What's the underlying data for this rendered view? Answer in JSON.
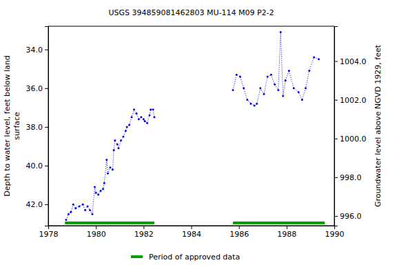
{
  "chart_data": {
    "type": "line",
    "title": "USGS 394859081462803 MU-114 M09 P2-2",
    "y_label": [
      "Depth to water level, feet below land",
      "surface"
    ],
    "y2_label": "Groundwater level above NGVD 1929, feet",
    "xlim": [
      1978,
      1990
    ],
    "xticks": [
      1978,
      1980,
      1982,
      1984,
      1986,
      1988,
      1990
    ],
    "ylim": [
      32.8,
      43.1
    ],
    "yticks": [
      {
        "value": 34,
        "label": "34.0"
      },
      {
        "value": 36,
        "label": "36.0"
      },
      {
        "value": 38,
        "label": "38.0"
      },
      {
        "value": 40,
        "label": "40.0"
      },
      {
        "value": 42,
        "label": "42.0"
      }
    ],
    "y2lim": [
      1005.8,
      995.5
    ],
    "y2ticks": [
      {
        "value": 996,
        "label": "996.0"
      },
      {
        "value": 998,
        "label": "998.0"
      },
      {
        "value": 1000,
        "label": "1000.0"
      },
      {
        "value": 1002,
        "label": "1002.0"
      },
      {
        "value": 1004,
        "label": "1004.0"
      }
    ],
    "grid": false,
    "series": [
      {
        "name": "Depth to water level",
        "color": "#0000ff",
        "marker": "point",
        "line_style": "dotted",
        "x": [
          1978.75,
          1978.85,
          1978.95,
          1979.05,
          1979.15,
          1979.3,
          1979.45,
          1979.55,
          1979.65,
          1979.75,
          1979.85,
          1979.95,
          1980.0,
          1980.1,
          1980.2,
          1980.3,
          1980.35,
          1980.45,
          1980.5,
          1980.6,
          1980.7,
          1980.75,
          1980.8,
          1980.9,
          1980.95,
          1981.05,
          1981.15,
          1981.25,
          1981.3,
          1981.4,
          1981.5,
          1981.6,
          1981.7,
          1981.8,
          1981.9,
          1982.0,
          1982.05,
          1982.15,
          1982.25,
          1982.3,
          1982.4,
          1982.45,
          1984.0,
          1985.75,
          1985.9,
          1986.05,
          1986.2,
          1986.35,
          1986.5,
          1986.65,
          1986.75,
          1986.9,
          1987.05,
          1987.2,
          1987.35,
          1987.5,
          1987.65,
          1987.75,
          1987.85,
          1987.95,
          1988.1,
          1988.3,
          1988.5,
          1988.65,
          1988.8,
          1988.95,
          1989.15,
          1989.35
        ],
        "values": [
          42.8,
          42.5,
          42.4,
          42.0,
          42.2,
          42.1,
          42.0,
          42.3,
          42.1,
          42.3,
          42.5,
          41.1,
          41.4,
          41.5,
          41.3,
          41.2,
          40.9,
          39.7,
          40.4,
          40.1,
          40.2,
          39.2,
          38.7,
          38.9,
          39.1,
          38.7,
          38.5,
          38.2,
          38.0,
          37.9,
          37.5,
          37.1,
          37.3,
          37.6,
          37.5,
          37.6,
          37.7,
          37.8,
          37.4,
          37.1,
          37.1,
          37.5,
          null,
          36.1,
          35.3,
          35.4,
          36.0,
          36.6,
          36.8,
          36.9,
          36.8,
          36.0,
          36.3,
          35.4,
          35.3,
          35.8,
          36.1,
          33.1,
          36.4,
          35.6,
          35.1,
          36.0,
          36.2,
          36.6,
          36.0,
          35.1,
          34.4,
          34.5
        ]
      }
    ],
    "approved_periods": {
      "name": "Period of approved data",
      "color": "#00a000",
      "start": [
        1978.7,
        1985.75
      ],
      "end": [
        1982.45,
        1989.6
      ]
    }
  }
}
